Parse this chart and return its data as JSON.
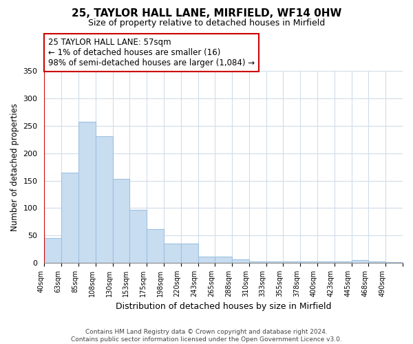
{
  "title": "25, TAYLOR HALL LANE, MIRFIELD, WF14 0HW",
  "subtitle": "Size of property relative to detached houses in Mirfield",
  "xlabel": "Distribution of detached houses by size in Mirfield",
  "ylabel": "Number of detached properties",
  "bar_color": "#c8ddf0",
  "bar_edge_color": "#a0c0e0",
  "highlight_color": "#cc0000",
  "background_color": "#ffffff",
  "grid_color": "#d0dce8",
  "bin_labels": [
    "40sqm",
    "63sqm",
    "85sqm",
    "108sqm",
    "130sqm",
    "153sqm",
    "175sqm",
    "198sqm",
    "220sqm",
    "243sqm",
    "265sqm",
    "288sqm",
    "310sqm",
    "333sqm",
    "355sqm",
    "378sqm",
    "400sqm",
    "423sqm",
    "445sqm",
    "468sqm",
    "490sqm"
  ],
  "counts": [
    45,
    165,
    258,
    231,
    153,
    97,
    62,
    35,
    35,
    11,
    11,
    6,
    2,
    2,
    2,
    2,
    2,
    2,
    5,
    2,
    1
  ],
  "annotation_line1": "25 TAYLOR HALL LANE: 57sqm",
  "annotation_line2": "← 1% of detached houses are smaller (16)",
  "annotation_line3": "98% of semi-detached houses are larger (1,084) →",
  "ylim": [
    0,
    350
  ],
  "yticks": [
    0,
    50,
    100,
    150,
    200,
    250,
    300,
    350
  ],
  "footer_line1": "Contains HM Land Registry data © Crown copyright and database right 2024.",
  "footer_line2": "Contains public sector information licensed under the Open Government Licence v3.0."
}
